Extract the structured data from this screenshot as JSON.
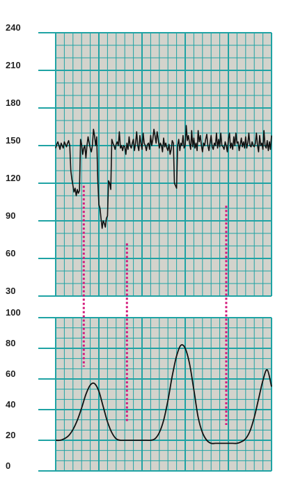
{
  "colors": {
    "paper": "#d3d3cc",
    "grid": "#1fa3a4",
    "trace": "#111111",
    "marker": "#d4177a",
    "text": "#222222"
  },
  "chart_data": [
    {
      "type": "line",
      "panel": "fetal-heart-rate",
      "title": "",
      "xlabel": "",
      "ylabel": "",
      "ylim": [
        30,
        240
      ],
      "yticks": [
        "30",
        "60",
        "90",
        "120",
        "150",
        "180",
        "210",
        "240"
      ],
      "grid": true,
      "series": [
        {
          "x": [
            0,
            0.5,
            1,
            1.5,
            2,
            2.5,
            3,
            3.5,
            4,
            4.5,
            5,
            5.5,
            6,
            6.5,
            7,
            7.5,
            8,
            8.5,
            9,
            9.5,
            10,
            10.5,
            11,
            11.5,
            12,
            12.5,
            13,
            13.5,
            14,
            14.5,
            15,
            15.5,
            16,
            16.5,
            17,
            17.5,
            18,
            18.5,
            19,
            19.5,
            20,
            20.5,
            21,
            21.5,
            22,
            22.5,
            23,
            23.5,
            24,
            24.5,
            25,
            25.5,
            26,
            26.5,
            27,
            27.5,
            28,
            28.5,
            29,
            29.5,
            30,
            30.5,
            31,
            31.5,
            32,
            32.5,
            33,
            33.5,
            34,
            34.5,
            35,
            35.5,
            36,
            36.5,
            37,
            37.5,
            38,
            38.5,
            39,
            39.5,
            40,
            40.5,
            41,
            41.5,
            42,
            42.5,
            43,
            43.5,
            44,
            44.5,
            45,
            45.5,
            46,
            46.5,
            47,
            47.5,
            48,
            48.5,
            49,
            49.5,
            50,
            50.5,
            51,
            51.5,
            52,
            52.5,
            53,
            53.5,
            54,
            54.5,
            55,
            55.5,
            56,
            56.5,
            57,
            57.5,
            58,
            58.5,
            59,
            59.5,
            60,
            60.5,
            61,
            61.5,
            62,
            62.5,
            63,
            63.5,
            64,
            64.5,
            65,
            65.5,
            66,
            66.5,
            67,
            67.5,
            68,
            68.5,
            69,
            69.5,
            70,
            70.5,
            71,
            71.5,
            72,
            72.5,
            73,
            73.5,
            74,
            74.5,
            75,
            75.5,
            76,
            76.5,
            77,
            77.5,
            78,
            78.5,
            79,
            79.5,
            80,
            80.5,
            81,
            81.5,
            82,
            82.5,
            83,
            83.5,
            84,
            84.5,
            85,
            85.5,
            86,
            86.5,
            87,
            87.5,
            88,
            88.5,
            89,
            89.5,
            90,
            90.5,
            91,
            91.5,
            92,
            92.5,
            93,
            93.5,
            94,
            94.5,
            95,
            95.5,
            96,
            96.5,
            97,
            97.5,
            98,
            98.5,
            99,
            99.5,
            100
          ],
          "y": [
            148,
            151,
            153,
            150,
            147,
            152,
            150,
            148,
            153,
            151,
            149,
            152,
            154,
            150,
            130,
            123,
            118,
            113,
            116,
            110,
            115,
            112,
            114,
            155,
            151,
            143,
            148,
            150,
            140,
            150,
            157,
            152,
            148,
            145,
            150,
            163,
            158,
            150,
            157,
            123,
            103,
            100,
            92,
            84,
            90,
            88,
            85,
            92,
            94,
            122,
            120,
            115,
            155,
            152,
            150,
            147,
            151,
            153,
            150,
            161,
            148,
            150,
            146,
            150,
            149,
            143,
            152,
            147,
            157,
            150,
            148,
            152,
            155,
            146,
            152,
            161,
            150,
            146,
            158,
            152,
            147,
            160,
            152,
            150,
            146,
            151,
            152,
            147,
            158,
            150,
            155,
            163,
            158,
            152,
            161,
            155,
            148,
            152,
            150,
            145,
            156,
            149,
            152,
            148,
            146,
            151,
            143,
            147,
            154,
            152,
            120,
            118,
            116,
            150,
            155,
            146,
            152,
            150,
            158,
            148,
            150,
            166,
            154,
            158,
            152,
            147,
            162,
            149,
            156,
            148,
            152,
            146,
            162,
            153,
            158,
            150,
            145,
            152,
            150,
            155,
            159,
            150,
            146,
            152,
            158,
            149,
            147,
            152,
            150,
            160,
            148,
            155,
            149,
            160,
            150,
            149,
            147,
            153,
            150,
            145,
            155,
            160,
            148,
            152,
            147,
            157,
            150,
            160,
            152,
            153,
            146,
            151,
            156,
            149,
            153,
            148,
            157,
            148,
            152,
            160,
            150,
            149,
            153,
            150,
            149,
            152,
            160,
            150,
            145,
            158,
            150,
            152,
            147,
            162,
            150,
            148,
            154,
            146,
            153,
            147,
            158
          ]
        }
      ]
    },
    {
      "type": "line",
      "panel": "uterine-activity",
      "title": "",
      "xlabel": "",
      "ylabel": "",
      "ylim": [
        0,
        100
      ],
      "yticks": [
        "0",
        "20",
        "40",
        "60",
        "80",
        "100"
      ],
      "grid": true,
      "series": [
        {
          "x": [
            0,
            2,
            4,
            6,
            8,
            10,
            12,
            14,
            16,
            18,
            20,
            22,
            24,
            26,
            28,
            30,
            32,
            34,
            36,
            38,
            40,
            42,
            44,
            46,
            48,
            50,
            52,
            54,
            56,
            58,
            60,
            62,
            64,
            66,
            68,
            70,
            72,
            74,
            76,
            78,
            80,
            82,
            84,
            86,
            88,
            90,
            92,
            94,
            96,
            98,
            100
          ],
          "y": [
            20,
            20,
            21,
            23,
            27,
            33,
            41,
            50,
            56,
            57,
            52,
            42,
            32,
            25,
            21,
            20,
            20,
            20,
            20,
            20,
            20,
            20,
            20,
            21,
            25,
            33,
            46,
            62,
            75,
            82,
            80,
            70,
            53,
            35,
            25,
            20,
            18,
            18,
            18,
            18,
            18,
            18,
            18,
            19,
            21,
            26,
            35,
            47,
            59,
            66,
            55
          ]
        }
      ]
    }
  ],
  "markers": [
    {
      "from_fhr": 118,
      "to_toco": 68
    },
    {
      "from_fhr": 72,
      "to_toco": 32
    },
    {
      "from_fhr": 102,
      "to_toco": 30
    }
  ],
  "marker_x": [
    13,
    33,
    79
  ]
}
